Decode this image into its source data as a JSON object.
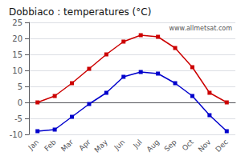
{
  "chart_data": {
    "type": "line",
    "title": "Dobbiaco : temperatures (°C)",
    "categories": [
      "Jan",
      "Feb",
      "Mar",
      "Apr",
      "May",
      "Jun",
      "Jul",
      "Aug",
      "Sep",
      "Oct",
      "Nov",
      "Dec"
    ],
    "series": [
      {
        "color": "#cc0000",
        "marker": "square",
        "values": [
          0,
          2,
          6,
          10.5,
          15,
          19,
          21,
          20.5,
          17,
          11,
          3,
          0
        ]
      },
      {
        "color": "#0000cc",
        "marker": "square",
        "values": [
          -9,
          -8.5,
          -4.5,
          -0.5,
          3,
          8,
          9.5,
          9,
          6,
          2,
          -4,
          -9
        ]
      }
    ],
    "ylim": [
      -10,
      25
    ],
    "yticks": [
      -10,
      -5,
      0,
      5,
      10,
      15,
      20,
      25
    ],
    "grid": true,
    "annotations": [
      "www.allmetsat.com"
    ]
  }
}
